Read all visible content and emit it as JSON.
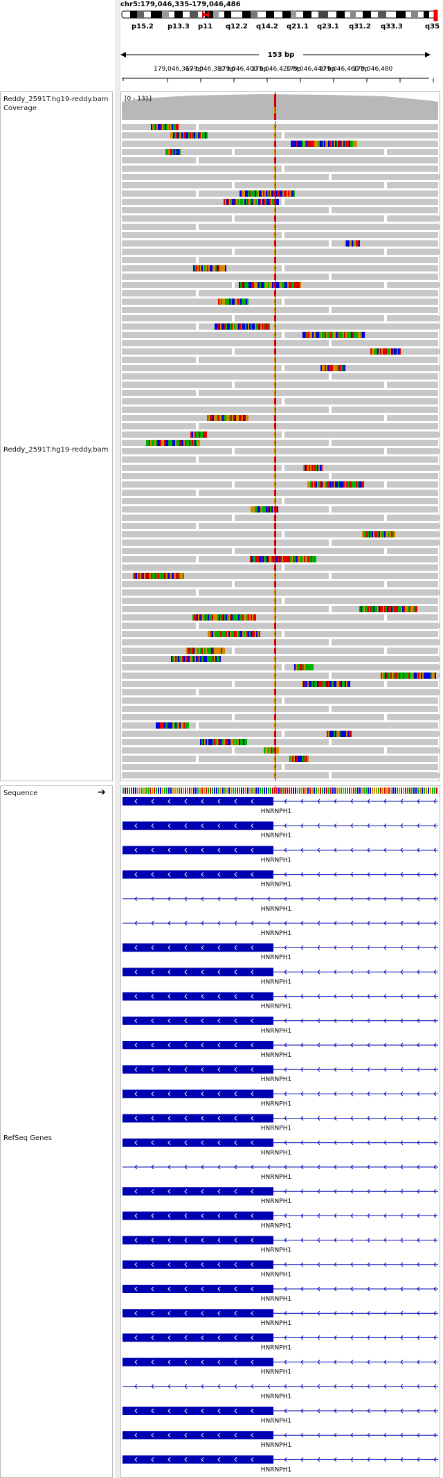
{
  "locus": "chr5:179,046,335-179,046,486",
  "ideogram_bands": [
    "p15.2",
    "p13.3",
    "p11",
    "q12.2",
    "q14.2",
    "q21.1",
    "q23.1",
    "q31.2",
    "q33.3",
    "q35"
  ],
  "span_label": "153 bp",
  "ruler_ticks": [
    "179,046,360 bp",
    "179,046,380 bp",
    "179,046,400 bp",
    "179,046,420 bp",
    "179,046,440 bp",
    "179,046,460 bp",
    "179,046,480"
  ],
  "tracks": {
    "coverage_name": "Reddy_2591T.hg19-reddy.bam Coverage",
    "coverage_range": "[0 - 131]",
    "alignment_name": "Reddy_2591T.hg19-reddy.bam",
    "sequence_name": "Sequence",
    "genes_name": "RefSeq Genes"
  },
  "gene_name": "HNRNPH1",
  "gene_row_count": 28,
  "gene_rows_without_exon": [
    4,
    5,
    15,
    24
  ],
  "colors": {
    "read": "#c8c8c8",
    "coverage": "#b8b8b8",
    "gene": "#0000b3",
    "base_A": "#00b000",
    "base_C": "#0000e0",
    "base_G": "#d18a00",
    "base_T": "#e00000"
  },
  "icons": {
    "sequence_strand": "arrow-right-icon"
  }
}
